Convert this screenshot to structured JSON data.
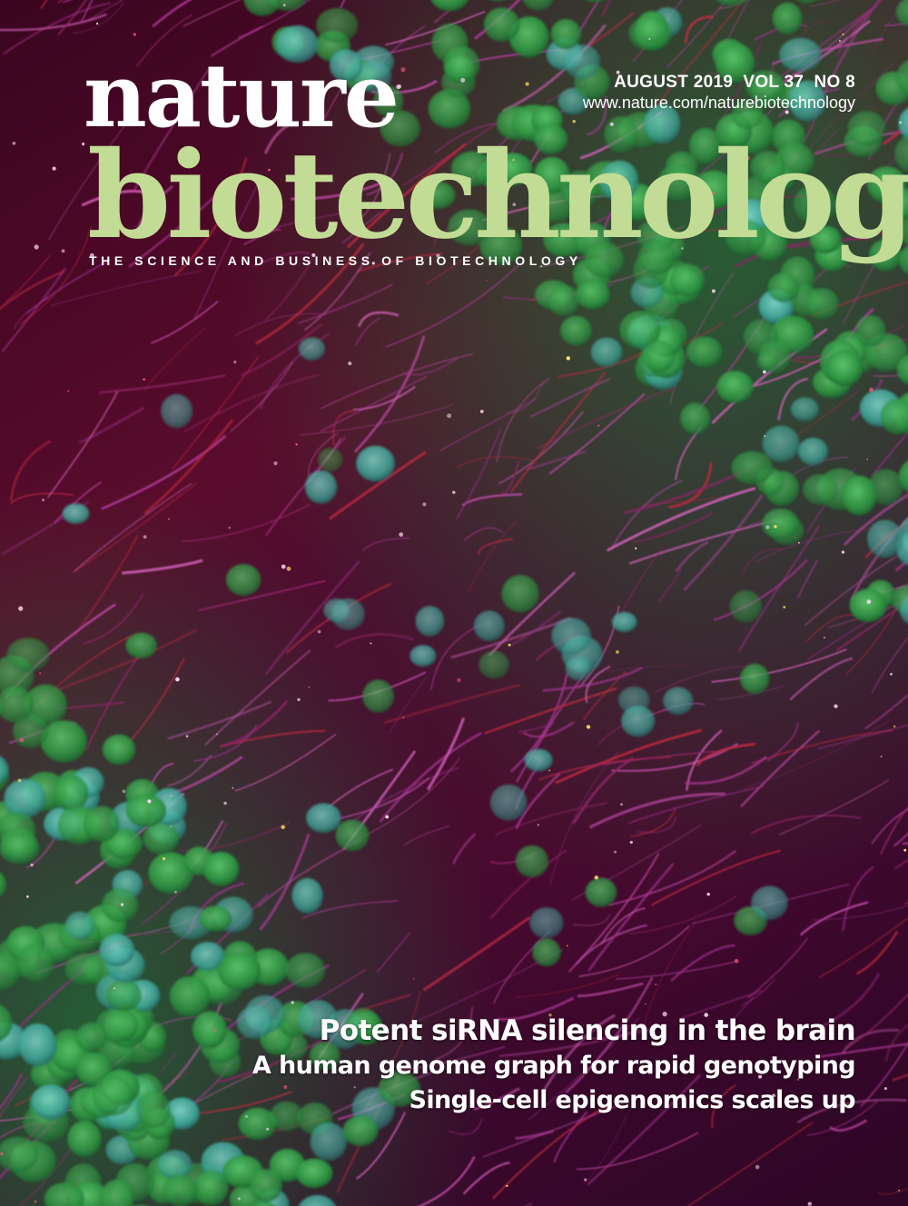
{
  "masthead": {
    "title_line1": "nature",
    "title_line2": "biotechnology",
    "tagline": "THE SCIENCE AND BUSINESS OF BIOTECHNOLOGY"
  },
  "issue": {
    "date_volume": "AUGUST 2019  VOL 37  NO 8",
    "url": "www.nature.com/naturebiotechnology"
  },
  "cover_lines": {
    "lead": "Potent siRNA silencing in the brain",
    "items": [
      "A human genome graph for rapid genotyping",
      "Single-cell epigenomics scales up"
    ]
  },
  "colors": {
    "journal_name": "#c3dc95",
    "nature_word": "#ffffff",
    "background": "#4a0b2e",
    "cell_green": "#3fa34d",
    "cell_teal": "#4fb3a6",
    "fiber_magenta": "#b03a9a"
  }
}
